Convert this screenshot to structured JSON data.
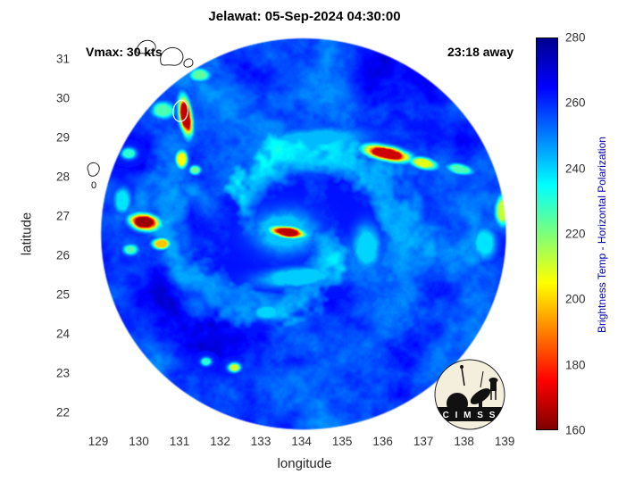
{
  "chart_data": {
    "type": "heatmap",
    "title": "Jelawat: 05-Sep-2024 04:30:00",
    "annotations": {
      "vmax": "Vmax: 30 kts",
      "time_offset": "23:18 away"
    },
    "xlabel": "longitude",
    "ylabel": "latitude",
    "x_ticks": [
      129,
      130,
      131,
      132,
      133,
      134,
      135,
      136,
      137,
      138,
      139
    ],
    "y_ticks": [
      22,
      23,
      24,
      25,
      26,
      27,
      28,
      29,
      30,
      31
    ],
    "xlim": [
      128.45,
      139.7
    ],
    "ylim": [
      21.55,
      31.6
    ],
    "grid": false,
    "colorbar": {
      "label": "Brightness Temp - Horizontal Polarization",
      "label_color": "#0000b4",
      "ticks": [
        160,
        180,
        200,
        220,
        240,
        260,
        280
      ],
      "min": 160,
      "max": 280,
      "colormap": "jet (280 dark blue at top, 160 dark red at bottom)"
    },
    "storm": {
      "name": "Jelawat",
      "datetime": "05-Sep-2024 04:30:00",
      "vmax_kts": 30,
      "center_lon": 133.65,
      "center_lat": 26.6
    },
    "swath": {
      "center_lon": 134.05,
      "center_lat": 26.55,
      "radius_deg": 5.0,
      "base_temp_K": 257
    },
    "contour_label": "0",
    "features": [
      {
        "lon": 131.15,
        "lat": 29.55,
        "sx": 0.13,
        "sy": 0.42,
        "rot": 8,
        "peak": 168
      },
      {
        "lon": 131.05,
        "lat": 28.45,
        "sx": 0.12,
        "sy": 0.2,
        "rot": 0,
        "peak": 205
      },
      {
        "lon": 131.38,
        "lat": 28.18,
        "sx": 0.12,
        "sy": 0.1,
        "rot": 0,
        "peak": 222
      },
      {
        "lon": 130.15,
        "lat": 26.85,
        "sx": 0.3,
        "sy": 0.17,
        "rot": -10,
        "peak": 163
      },
      {
        "lon": 130.55,
        "lat": 26.3,
        "sx": 0.18,
        "sy": 0.12,
        "rot": 0,
        "peak": 198
      },
      {
        "lon": 129.8,
        "lat": 26.15,
        "sx": 0.16,
        "sy": 0.12,
        "rot": 0,
        "peak": 226
      },
      {
        "lon": 133.65,
        "lat": 26.6,
        "sx": 0.34,
        "sy": 0.12,
        "rot": -8,
        "peak": 167
      },
      {
        "lon": 136.1,
        "lat": 28.6,
        "sx": 0.48,
        "sy": 0.15,
        "rot": -12,
        "peak": 169
      },
      {
        "lon": 137.0,
        "lat": 28.35,
        "sx": 0.3,
        "sy": 0.12,
        "rot": -12,
        "peak": 208
      },
      {
        "lon": 137.9,
        "lat": 28.2,
        "sx": 0.28,
        "sy": 0.11,
        "rot": -10,
        "peak": 226
      },
      {
        "lon": 138.95,
        "lat": 27.15,
        "sx": 0.15,
        "sy": 0.33,
        "rot": 0,
        "peak": 212
      },
      {
        "lon": 132.35,
        "lat": 23.15,
        "sx": 0.13,
        "sy": 0.1,
        "rot": 0,
        "peak": 210
      },
      {
        "lon": 131.65,
        "lat": 23.3,
        "sx": 0.11,
        "sy": 0.09,
        "rot": 0,
        "peak": 230
      },
      {
        "lon": 130.6,
        "lat": 29.7,
        "sx": 0.24,
        "sy": 0.18,
        "rot": 0,
        "peak": 226
      },
      {
        "lon": 131.5,
        "lat": 30.6,
        "sx": 0.22,
        "sy": 0.14,
        "rot": 0,
        "peak": 224
      },
      {
        "lon": 129.75,
        "lat": 28.6,
        "sx": 0.15,
        "sy": 0.12,
        "rot": 0,
        "peak": 230
      },
      {
        "lon": 133.15,
        "lat": 24.55,
        "sx": 0.3,
        "sy": 0.17,
        "rot": 0,
        "peak": 240
      },
      {
        "lon": 134.2,
        "lat": 28.9,
        "sx": 1.2,
        "sy": 0.3,
        "rot": 5,
        "peak": 243
      },
      {
        "lon": 133.9,
        "lat": 25.45,
        "sx": 0.9,
        "sy": 0.22,
        "rot": 5,
        "peak": 241
      },
      {
        "lon": 133.6,
        "lat": 26.6,
        "sx": 0.7,
        "sy": 0.5,
        "rot": 0,
        "peak": 242
      },
      {
        "lon": 135.6,
        "lat": 26.2,
        "sx": 0.3,
        "sy": 0.5,
        "rot": 0,
        "peak": 240
      },
      {
        "lon": 138.5,
        "lat": 26.3,
        "sx": 0.25,
        "sy": 0.35,
        "rot": 0,
        "peak": 238
      },
      {
        "lon": 129.6,
        "lat": 27.4,
        "sx": 0.18,
        "sy": 0.28,
        "rot": 0,
        "peak": 238
      }
    ],
    "dark_patches": [
      {
        "lon": 132.0,
        "lat": 23.9,
        "sx": 1.4,
        "sy": 1.0,
        "amp": 16
      },
      {
        "lon": 134.3,
        "lat": 24.9,
        "sx": 0.9,
        "sy": 0.7,
        "amp": 11
      },
      {
        "lon": 130.7,
        "lat": 24.9,
        "sx": 0.9,
        "sy": 0.6,
        "amp": 10
      },
      {
        "lon": 133.3,
        "lat": 30.7,
        "sx": 1.3,
        "sy": 0.6,
        "amp": 7
      },
      {
        "lon": 137.6,
        "lat": 25.2,
        "sx": 0.9,
        "sy": 0.7,
        "amp": 6
      },
      {
        "lon": 138.3,
        "lat": 29.2,
        "sx": 0.8,
        "sy": 0.5,
        "amp": 6
      }
    ]
  },
  "logo": {
    "text": "C I M S S"
  }
}
